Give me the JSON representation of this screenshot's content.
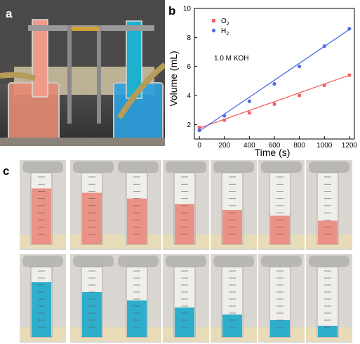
{
  "panels": {
    "a": "a",
    "b": "b",
    "c": "c"
  },
  "photo_a": {
    "description_icon": "electrolysis-cell-photo-icon"
  },
  "chart_data": {
    "type": "scatter",
    "title": "",
    "xlabel": "Time (s)",
    "ylabel": "Volume (mL)",
    "xlim": [
      -40,
      1240
    ],
    "ylim": [
      1,
      10
    ],
    "xticks": [
      0,
      200,
      400,
      600,
      800,
      1000,
      1200
    ],
    "yticks": [
      2,
      4,
      6,
      8,
      10
    ],
    "annotation": "1.0 M KOH",
    "legend_placement": "top-left",
    "grid": false,
    "series": [
      {
        "name": "O2",
        "name_main": "O",
        "name_sub": "2",
        "marker": "square",
        "color": "#f06262",
        "x": [
          0,
          200,
          400,
          600,
          800,
          1000,
          1200
        ],
        "y": [
          1.8,
          2.3,
          2.8,
          3.4,
          4.0,
          4.7,
          5.4
        ],
        "fit": [
          1.75,
          5.4
        ]
      },
      {
        "name": "H2",
        "name_main": "H",
        "name_sub": "2",
        "marker": "circle",
        "color": "#4f6fe0",
        "x": [
          0,
          200,
          400,
          600,
          800,
          1000,
          1200
        ],
        "y": [
          1.6,
          2.6,
          3.6,
          4.8,
          6.0,
          7.4,
          8.6
        ],
        "fit": [
          1.55,
          8.55
        ]
      }
    ]
  },
  "photo_c": {
    "red_row": [
      0.78,
      0.72,
      0.64,
      0.56,
      0.48,
      0.4,
      0.33
    ],
    "blue_row": [
      0.78,
      0.64,
      0.52,
      0.42,
      0.32,
      0.24,
      0.16
    ],
    "colors": {
      "red": "#e8877a",
      "blue": "#1aa6c9"
    }
  }
}
